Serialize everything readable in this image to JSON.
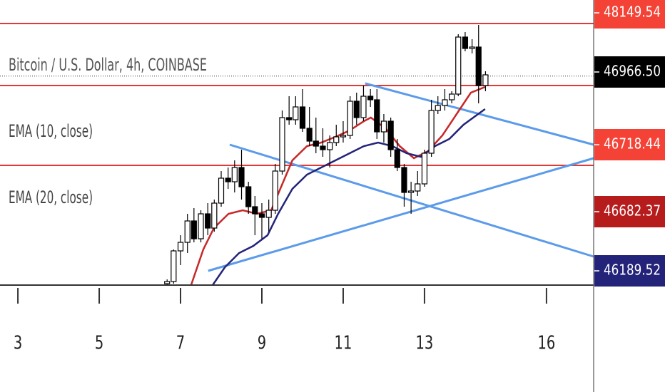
{
  "chart_data": {
    "type": "candlestick",
    "title": "Bitcoin / U.S. Dollar, 4h, COINBASE",
    "xlim": [
      2.56,
      17.16
    ],
    "xticks": [
      3,
      5,
      7,
      9,
      11,
      13,
      16
    ],
    "ylim": [
      45500,
      47500
    ],
    "x": [
      6.67,
      6.83,
      7,
      7.17,
      7.33,
      7.5,
      7.67,
      7.83,
      8,
      8.17,
      8.33,
      8.5,
      8.67,
      8.83,
      9,
      9.17,
      9.33,
      9.5,
      9.67,
      9.83,
      10,
      10.17,
      10.33,
      10.5,
      10.67,
      10.83,
      11,
      11.17,
      11.33,
      11.5,
      11.67,
      11.83,
      12,
      12.17,
      12.33,
      12.5,
      12.67,
      12.83,
      13,
      13.17,
      13.33,
      13.5,
      13.67,
      13.83,
      14,
      14.17,
      14.33,
      14.5
    ],
    "open": [
      45510,
      45525,
      45740,
      45800,
      45950,
      45825,
      46000,
      45900,
      46075,
      46250,
      46225,
      46325,
      46190,
      46050,
      46000,
      45975,
      46025,
      46300,
      46675,
      46660,
      46750,
      46600,
      46510,
      46475,
      46450,
      46500,
      46540,
      46550,
      46790,
      46675,
      46825,
      46800,
      46575,
      46650,
      46450,
      46325,
      46150,
      46160,
      46210,
      46425,
      46725,
      46760,
      46800,
      46840,
      47240,
      47160,
      47170,
      46900
    ],
    "high": [
      45540,
      45750,
      45850,
      46000,
      46040,
      46025,
      46075,
      46100,
      46300,
      46325,
      46375,
      46450,
      46225,
      46125,
      46075,
      46100,
      46350,
      46725,
      46825,
      46825,
      46875,
      46750,
      46675,
      46600,
      46550,
      46625,
      46650,
      46825,
      46850,
      46900,
      46875,
      46875,
      46700,
      46675,
      46525,
      46350,
      46225,
      46300,
      46450,
      46800,
      46825,
      46875,
      46860,
      47260,
      47275,
      47225,
      47325,
      47000
    ],
    "low": [
      45500,
      45510,
      45640,
      45725,
      45800,
      45800,
      45850,
      45875,
      46050,
      46175,
      46150,
      46100,
      46000,
      45850,
      45825,
      45875,
      46000,
      46275,
      46625,
      46625,
      46575,
      46475,
      46425,
      46400,
      46325,
      46475,
      46500,
      46525,
      46625,
      46650,
      46750,
      46525,
      46500,
      46400,
      46300,
      46050,
      46000,
      46125,
      46190,
      46400,
      46700,
      46725,
      46775,
      46825,
      47140,
      47125,
      46775,
      46860
    ],
    "close": [
      45525,
      45740,
      45800,
      45950,
      45825,
      46000,
      45900,
      46075,
      46250,
      46225,
      46325,
      46190,
      46050,
      46000,
      45975,
      46025,
      46300,
      46675,
      46660,
      46750,
      46600,
      46510,
      46475,
      46450,
      46500,
      46540,
      46550,
      46790,
      46675,
      46825,
      46800,
      46575,
      46650,
      46450,
      46325,
      46150,
      46160,
      46210,
      46425,
      46725,
      46760,
      46800,
      46840,
      47240,
      47160,
      47170,
      46900,
      46975
    ],
    "up_color": "#ffffff",
    "down_color": "#000000",
    "series": [
      {
        "name": "EMA (10, close)",
        "color": "#c62828",
        "x": [
          7.26,
          7.56,
          7.82,
          8.18,
          8.53,
          8.88,
          9.23,
          9.49,
          9.75,
          10.11,
          10.46,
          10.81,
          11.16,
          11.51,
          11.68,
          12.04,
          12.39,
          12.74,
          13.09,
          13.44,
          13.79,
          14.14,
          14.49
        ],
        "values": [
          45500,
          45750,
          45900,
          46000,
          46025,
          46000,
          46025,
          46200,
          46375,
          46475,
          46500,
          46540,
          46585,
          46650,
          46675,
          46600,
          46475,
          46390,
          46440,
          46550,
          46700,
          46850,
          46890
        ]
      },
      {
        "name": "EMA (20, close)",
        "color": "#23237a",
        "x": [
          7.79,
          8.09,
          8.44,
          8.79,
          9.14,
          9.4,
          9.75,
          10.11,
          10.46,
          10.81,
          11.16,
          11.51,
          11.86,
          12.21,
          12.56,
          12.91,
          13.26,
          13.61,
          13.96,
          14.32,
          14.49
        ],
        "values": [
          45500,
          45625,
          45725,
          45775,
          45850,
          46000,
          46175,
          46275,
          46325,
          46375,
          46425,
          46475,
          46500,
          46475,
          46425,
          46400,
          46475,
          46525,
          46625,
          46700,
          46735
        ]
      }
    ],
    "trendlines": [
      {
        "x": [
          8.21,
          17.16
        ],
        "values": [
          46485,
          45700
        ]
      },
      {
        "x": [
          7.68,
          17.16
        ],
        "values": [
          45600,
          46390
        ]
      },
      {
        "x": [
          11.54,
          17.16
        ],
        "values": [
          46915,
          46485
        ]
      }
    ],
    "trendline_color": "#5b9bea",
    "levels": [
      47335,
      46900,
      46340
    ],
    "level_color": "#e53935",
    "price_tags": [
      {
        "value": 48149.54,
        "color": "#f44336"
      },
      {
        "value": {
          "value": 46966.5,
          "label": "46966.50"
        },
        "color": "#000000"
      },
      {
        "value": 46718.44,
        "color": "#f44336"
      },
      {
        "value": 46682.37,
        "color": "#b71c1c"
      },
      {
        "value": 46189.52,
        "color": "#23237a"
      }
    ]
  }
}
